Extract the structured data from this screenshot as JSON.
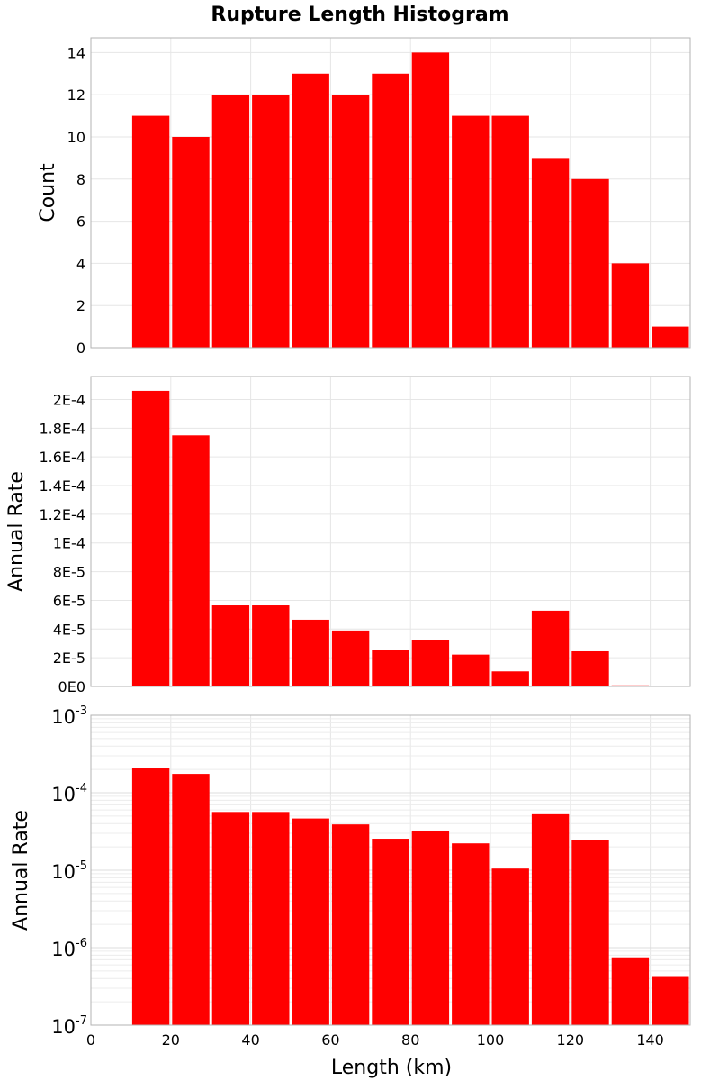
{
  "title": "Rupture Length Histogram",
  "colors": {
    "bar": "#ff0000",
    "frame": "#b3b3b3",
    "grid": "#e6e6e6",
    "background": "#ffffff"
  },
  "chart_data": [
    {
      "type": "bar",
      "ylabel": "Count",
      "xlim": [
        0,
        150
      ],
      "ylim": [
        0,
        14.7
      ],
      "yscale": "linear",
      "grid": true,
      "x": [
        15,
        25,
        35,
        45,
        55,
        65,
        75,
        85,
        95,
        105,
        115,
        125,
        135,
        145
      ],
      "bin_width": 10,
      "values": [
        11,
        10,
        12,
        12,
        13,
        12,
        13,
        14,
        11,
        11,
        9,
        8,
        4,
        1
      ],
      "yticks": [
        0,
        2,
        4,
        6,
        8,
        10,
        12,
        14
      ],
      "ytick_labels": [
        "0",
        "2",
        "4",
        "6",
        "8",
        "10",
        "12",
        "14"
      ]
    },
    {
      "type": "bar",
      "ylabel": "Annual Rate",
      "xlim": [
        0,
        150
      ],
      "ylim": [
        0,
        0.000216
      ],
      "yscale": "linear",
      "grid": true,
      "x": [
        15,
        25,
        35,
        45,
        55,
        65,
        75,
        85,
        95,
        105,
        115,
        125,
        135,
        145
      ],
      "bin_width": 10,
      "values": [
        0.000206,
        0.000175,
        5.65e-05,
        5.65e-05,
        4.65e-05,
        3.9e-05,
        2.55e-05,
        3.25e-05,
        2.22e-05,
        1.05e-05,
        5.28e-05,
        2.45e-05,
        7.5e-07,
        4.3e-07
      ],
      "yticks": [
        0,
        2e-05,
        4e-05,
        6e-05,
        8e-05,
        0.0001,
        0.00012,
        0.00014,
        0.00016,
        0.00018,
        0.0002
      ],
      "ytick_labels": [
        "0E0",
        "2E-5",
        "4E-5",
        "6E-5",
        "8E-5",
        "1E-4",
        "1.2E-4",
        "1.4E-4",
        "1.6E-4",
        "1.8E-4",
        "2E-4"
      ]
    },
    {
      "type": "bar",
      "ylabel": "Annual Rate",
      "xlabel": "Length (km)",
      "xlim": [
        0,
        150
      ],
      "ylim": [
        1e-07,
        0.001
      ],
      "yscale": "log",
      "grid": true,
      "x": [
        15,
        25,
        35,
        45,
        55,
        65,
        75,
        85,
        95,
        105,
        115,
        125,
        135,
        145
      ],
      "bin_width": 10,
      "values": [
        0.000206,
        0.000175,
        5.65e-05,
        5.65e-05,
        4.65e-05,
        3.9e-05,
        2.55e-05,
        3.25e-05,
        2.22e-05,
        1.05e-05,
        5.28e-05,
        2.45e-05,
        7.5e-07,
        4.3e-07
      ],
      "ytick_exponents": [
        "-7",
        "-6",
        "-5",
        "-4",
        "-3"
      ],
      "ytick_base": "10",
      "xticks": [
        0,
        20,
        40,
        60,
        80,
        100,
        120,
        140
      ],
      "xtick_labels": [
        "0",
        "20",
        "40",
        "60",
        "80",
        "100",
        "120",
        "140"
      ]
    }
  ]
}
